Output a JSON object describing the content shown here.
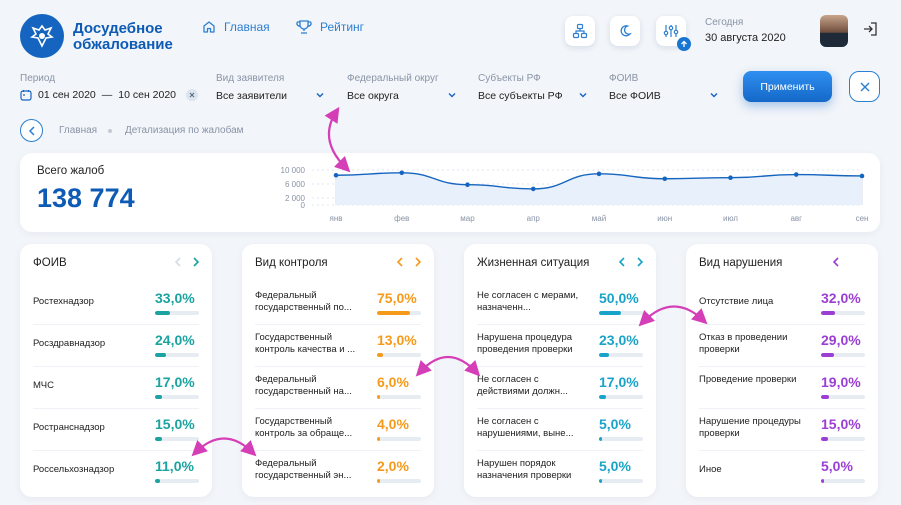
{
  "header": {
    "logo_line1": "Досудебное",
    "logo_line2": "обжалование",
    "nav": [
      {
        "label": "Главная",
        "icon": "home-icon"
      },
      {
        "label": "Рейтинг",
        "icon": "trophy-icon"
      }
    ],
    "today_label": "Сегодня",
    "today_date": "30 августа 2020"
  },
  "filters": {
    "period": {
      "label": "Период",
      "from": "01 сен 2020",
      "dash": "—",
      "to": "10 сен 2020"
    },
    "applicant": {
      "label": "Вид заявителя",
      "value": "Все заявители"
    },
    "district": {
      "label": "Федеральный округ",
      "value": "Все округа"
    },
    "subjects": {
      "label": "Субъекты РФ",
      "value": "Все субъекты РФ"
    },
    "foiv": {
      "label": "ФОИВ",
      "value": "Все ФОИВ"
    },
    "apply_label": "Применить"
  },
  "breadcrumb": [
    "Главная",
    "Детализация по жалобам"
  ],
  "total": {
    "label": "Всего жалоб",
    "value": "138 774"
  },
  "chart_data": {
    "type": "area",
    "categories": [
      "янв",
      "фев",
      "мар",
      "апр",
      "май",
      "июн",
      "июл",
      "авг",
      "сен"
    ],
    "y_ticks": [
      "10 000",
      "6 000",
      "2 000",
      "0"
    ],
    "y_tick_values": [
      10000,
      6000,
      2000,
      0
    ],
    "values": [
      8500,
      9200,
      5800,
      4600,
      8900,
      7500,
      7800,
      8700,
      8300
    ],
    "ylim": [
      0,
      12000
    ],
    "color": "#1565c0"
  },
  "panels": [
    {
      "title": "ФОИВ",
      "color": "#1aa3a0",
      "rows": [
        {
          "label": "Ростехнадзор",
          "pct": "33,0%",
          "value": 0.33
        },
        {
          "label": "Росздравнадзор",
          "pct": "24,0%",
          "value": 0.24
        },
        {
          "label": "МЧС",
          "pct": "17,0%",
          "value": 0.17
        },
        {
          "label": "Ространснадзор",
          "pct": "15,0%",
          "value": 0.15
        },
        {
          "label": "Россельхознадзор",
          "pct": "11,0%",
          "value": 0.11
        }
      ]
    },
    {
      "title": "Вид контроля",
      "color": "#f59a1b",
      "rows": [
        {
          "label": "Федеральный государственный по...",
          "pct": "75,0%",
          "value": 0.75
        },
        {
          "label": "Государственный контроль качества и ...",
          "pct": "13,0%",
          "value": 0.13
        },
        {
          "label": "Федеральный государственный на...",
          "pct": "6,0%",
          "value": 0.06
        },
        {
          "label": "Государственный контроль за обраще...",
          "pct": "4,0%",
          "value": 0.04
        },
        {
          "label": "Федеральный государственный эн...",
          "pct": "2,0%",
          "value": 0.02
        }
      ]
    },
    {
      "title": "Жизненная ситуация",
      "color": "#1aa3c8",
      "rows": [
        {
          "label": "Не согласен с мерами, назначенн...",
          "pct": "50,0%",
          "value": 0.5
        },
        {
          "label": "Нарушена процедура проведения проверки",
          "pct": "23,0%",
          "value": 0.23
        },
        {
          "label": "Не согласен с действиями должн...",
          "pct": "17,0%",
          "value": 0.17
        },
        {
          "label": "Не согласен с нарушениями, выне...",
          "pct": "5,0%",
          "value": 0.05
        },
        {
          "label": "Нарушен порядок назначения проверки",
          "pct": "5,0%",
          "value": 0.05
        }
      ]
    },
    {
      "title": "Вид нарушения",
      "color": "#9b3fd4",
      "rows": [
        {
          "label": "Отсутствие лица",
          "pct": "32,0%",
          "value": 0.32
        },
        {
          "label": "Отказ в проведении проверки",
          "pct": "29,0%",
          "value": 0.29
        },
        {
          "label": "Проведение проверки",
          "pct": "19,0%",
          "value": 0.19
        },
        {
          "label": "Нарушение процедуры проверки",
          "pct": "15,0%",
          "value": 0.15
        },
        {
          "label": "Иное",
          "pct": "5,0%",
          "value": 0.05
        }
      ]
    }
  ]
}
